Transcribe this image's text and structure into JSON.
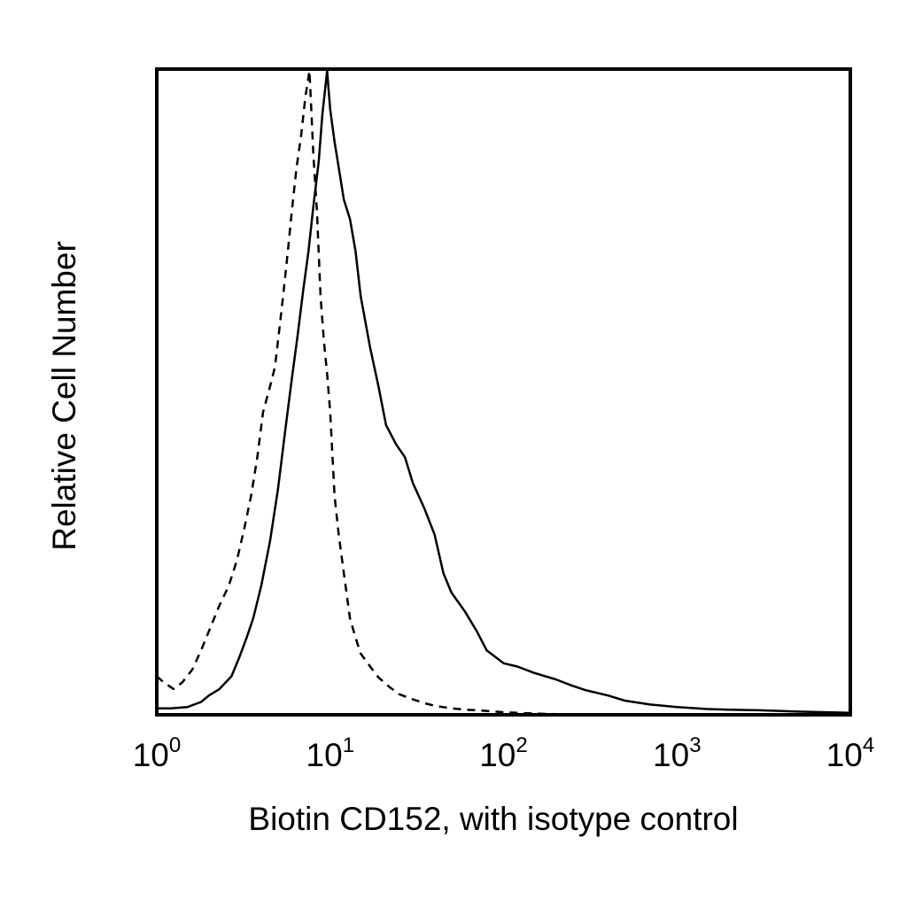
{
  "chart_data": {
    "type": "line",
    "title": "",
    "xlabel": "Biotin CD152, with isotype control",
    "ylabel": "Relative Cell Number",
    "x_scale": "log",
    "xlim": [
      1,
      10000
    ],
    "ylim": [
      0,
      100
    ],
    "grid": false,
    "legend": "none",
    "x_ticks": [
      {
        "value": 1,
        "base": "10",
        "exp": "0"
      },
      {
        "value": 10,
        "base": "10",
        "exp": "1"
      },
      {
        "value": 100,
        "base": "10",
        "exp": "2"
      },
      {
        "value": 1000,
        "base": "10",
        "exp": "3"
      },
      {
        "value": 10000,
        "base": "10",
        "exp": "4"
      }
    ],
    "series": [
      {
        "style": "solid",
        "color": "#000000",
        "x": [
          1.0,
          1.2,
          1.5,
          1.8,
          2.0,
          2.3,
          2.7,
          3.0,
          3.3,
          3.6,
          4.0,
          4.5,
          5.0,
          5.5,
          6.0,
          6.5,
          7.0,
          7.5,
          8.0,
          8.6,
          9.0,
          9.6,
          10.0,
          10.6,
          11.2,
          12.0,
          13.0,
          14.0,
          15.0,
          17.0,
          19.0,
          21.0,
          24.0,
          27.0,
          30.0,
          35.0,
          40.0,
          45.0,
          50.0,
          60.0,
          70.0,
          80.0,
          100.0,
          120.0,
          150.0,
          200.0,
          250.0,
          300.0,
          400.0,
          500.0,
          700.0,
          1000.0,
          1500.0,
          2000.0,
          3000.0,
          5000.0,
          10000.0
        ],
        "y": [
          1,
          1,
          1.2,
          2,
          3,
          4,
          6,
          9,
          12,
          15,
          20,
          27,
          35,
          44,
          52,
          59,
          66,
          72,
          79,
          86,
          93,
          100,
          94,
          89,
          85,
          80,
          77,
          72,
          65,
          57,
          51,
          45,
          42,
          40,
          36,
          32,
          28,
          22,
          19,
          16,
          13,
          10,
          8,
          7.5,
          6.5,
          5.5,
          4.5,
          3.8,
          3,
          2.2,
          1.6,
          1.2,
          0.9,
          0.8,
          0.7,
          0.5,
          0.3
        ]
      },
      {
        "style": "dashed",
        "color": "#000000",
        "x": [
          1.0,
          1.1,
          1.25,
          1.4,
          1.6,
          1.8,
          2.0,
          2.3,
          2.6,
          2.9,
          3.2,
          3.5,
          3.8,
          4.1,
          4.5,
          4.8,
          5.1,
          5.4,
          5.7,
          6.0,
          6.4,
          6.8,
          7.2,
          7.6,
          8.0,
          8.4,
          8.8,
          9.2,
          9.6,
          10.0,
          10.6,
          11.2,
          12.0,
          13.0,
          14.0,
          15.0,
          17.0,
          19.0,
          22.0,
          25.0,
          30.0,
          35.0,
          40.0,
          50.0,
          60.0,
          70.0,
          80.0,
          100.0,
          120.0,
          150.0,
          200.0
        ],
        "y": [
          6,
          5,
          4,
          5,
          7,
          10,
          13,
          17,
          20,
          24,
          29,
          34,
          40,
          47,
          51,
          54,
          60,
          66,
          72,
          78,
          85,
          90,
          96,
          100,
          87,
          78,
          65,
          58,
          53,
          47,
          34,
          28,
          22,
          15,
          12,
          9.5,
          7.5,
          5.8,
          4.3,
          3.2,
          2.4,
          1.8,
          1.4,
          1.0,
          0.8,
          0.7,
          0.6,
          0.4,
          0.3,
          0.2,
          0.1
        ]
      }
    ]
  }
}
